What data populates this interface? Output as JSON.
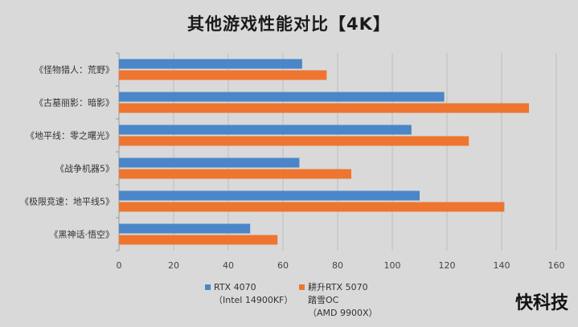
{
  "chart_data": {
    "type": "bar",
    "orientation": "horizontal",
    "title": "其他游戏性能对比【4K】",
    "categories": [
      "《怪物猎人：荒野》",
      "《古墓丽影：暗影》",
      "《地平线：零之曙光》",
      "《战争机器5》",
      "《极限竞速：地平线5》",
      "《黑神话·悟空》"
    ],
    "series": [
      {
        "name": "RTX 4070",
        "name_line2": "（Intel 14900KF）",
        "color": "#4a86c8",
        "values": [
          67,
          119,
          107,
          66,
          110,
          48
        ]
      },
      {
        "name": "耕升RTX 5070",
        "name_line2": "踏雪OC",
        "name_line3": "（AMD 9900X）",
        "color": "#ee7530",
        "values": [
          76,
          150,
          128,
          85,
          141,
          58
        ]
      }
    ],
    "xlim": [
      0,
      160
    ],
    "xticks": [
      "0",
      "20",
      "40",
      "60",
      "80",
      "100",
      "120",
      "140",
      "160"
    ],
    "grid": true,
    "legend_position": "bottom"
  },
  "watermark": "快科技"
}
